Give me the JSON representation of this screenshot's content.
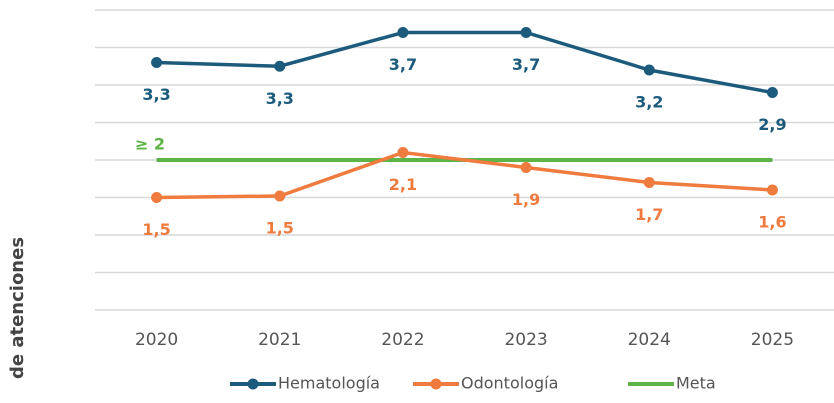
{
  "chart_data": {
    "type": "line",
    "y_label": "de atenciones",
    "categories": [
      "2020",
      "2021",
      "2022",
      "2023",
      "2024",
      "2025"
    ],
    "series": [
      {
        "name": "Hematología",
        "color": "#1d5b7d",
        "values": [
          3.3,
          3.25,
          3.7,
          3.7,
          3.2,
          2.9
        ],
        "value_labels": [
          "3,3",
          "3,3",
          "3,7",
          "3,7",
          "3,2",
          "2,9"
        ],
        "marker": true
      },
      {
        "name": "Odontología",
        "color": "#ef7b3e",
        "values": [
          1.5,
          1.52,
          2.1,
          1.9,
          1.7,
          1.6
        ],
        "value_labels": [
          "1,5",
          "1,5",
          "2,1",
          "1,9",
          "1,7",
          "1,6"
        ],
        "marker": true
      },
      {
        "name": "Meta",
        "color": "#5db346",
        "values": [
          2,
          2,
          2,
          2,
          2,
          2
        ],
        "marker": false
      }
    ],
    "annotation": "≥ 2",
    "ylim": [
      0,
      4
    ],
    "yticks": [
      0,
      0.5,
      1,
      1.5,
      2,
      2.5,
      3,
      3.5,
      4
    ],
    "grid": true,
    "legend": "bottom"
  }
}
